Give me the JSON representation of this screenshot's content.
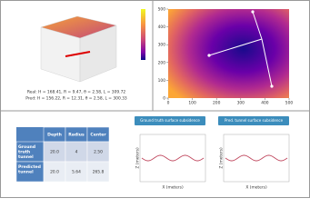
{
  "model3d": {
    "real_text": "Real: H = 168.41, R = 9.47, θ = 2.58, L = 309.72",
    "pred_text": "Pred: H = 156.22, R = 12.31, θ = 2.58, L = 300.33"
  },
  "heatmap": {
    "xlim": [
      0,
      500
    ],
    "ylim": [
      0,
      500
    ],
    "xticks": [
      0,
      100,
      200,
      300,
      400,
      500
    ],
    "yticks": [
      0,
      100,
      200,
      300,
      400,
      500
    ]
  },
  "table": {
    "header": [
      "Depth",
      "Radius",
      "Center"
    ],
    "rows": [
      {
        "label": "Ground truth tunnel",
        "cells": [
          "20.0",
          "4",
          "2.50"
        ]
      },
      {
        "label": "Predicted tunnel",
        "cells": [
          "20.0",
          "5.64",
          "265.8"
        ]
      }
    ]
  },
  "subsidence": {
    "buttons": [
      "Ground truth surface subsidence",
      "Pred. tunnel surface subsidence"
    ],
    "x_label": "X (meters)",
    "y_label": "Z (meters)"
  }
}
